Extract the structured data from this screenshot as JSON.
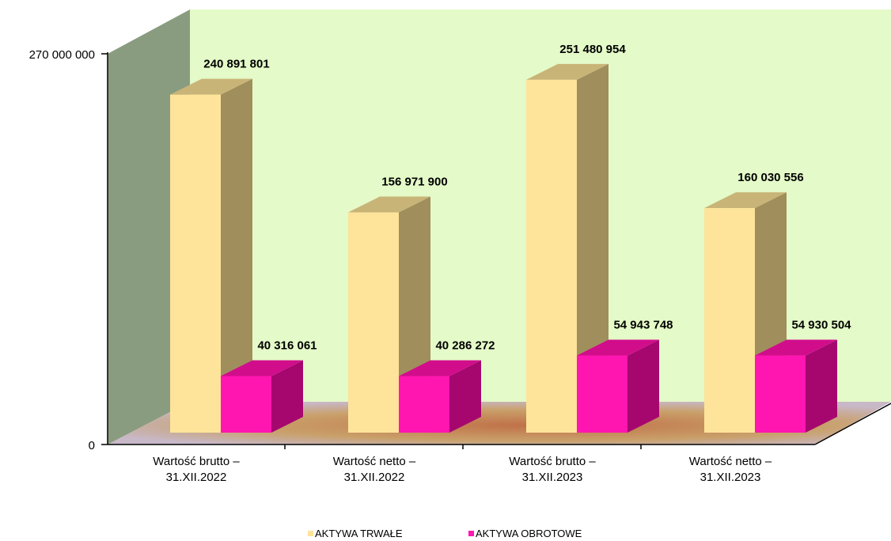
{
  "chart_data": {
    "type": "bar",
    "categories": [
      [
        "Wartość brutto –",
        "31.XII.2022"
      ],
      [
        "Wartość netto –",
        "31.XII.2022"
      ],
      [
        "Wartość brutto –",
        "31.XII.2023"
      ],
      [
        "Wartość netto –",
        "31.XII.2023"
      ]
    ],
    "series": [
      {
        "name": "AKTYWA TRWAŁE",
        "values": [
          240891801,
          156971900,
          251480954,
          160030556
        ],
        "labels": [
          "240 891 801",
          "156 971 900",
          "251 480 954",
          "160 030 556"
        ],
        "color_front": "#FDE49A",
        "color_side": "#A08E5C",
        "color_top": "#C9B478"
      },
      {
        "name": "AKTYWA OBROTOWE",
        "values": [
          40316061,
          40286272,
          54943748,
          54930504
        ],
        "labels": [
          "40 316 061",
          "40 286 272",
          "54 943 748",
          "54 930 504"
        ],
        "color_front": "#FF16B0",
        "color_side": "#A6076F",
        "color_top": "#D10D8C"
      }
    ],
    "ylim": [
      0,
      270000000
    ],
    "y_tick_labels": [
      "0",
      "270 000 000"
    ],
    "grid": false,
    "legend_position": "bottom",
    "colors": {
      "back_wall": "#E4FAC8",
      "side_wall": "#8A9C80",
      "floor": "#C49A6E"
    }
  }
}
